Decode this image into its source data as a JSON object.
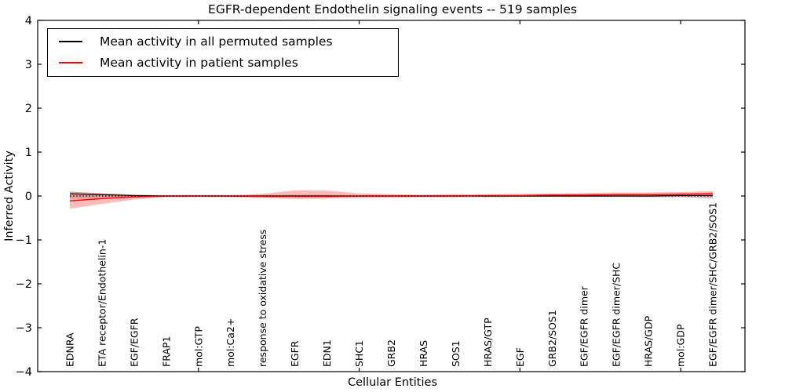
{
  "chart_data": {
    "type": "line",
    "title": "EGFR-dependent Endothelin signaling events -- 519 samples",
    "xlabel": "Cellular Entities",
    "ylabel": "Inferred Activity",
    "xlim": [
      0,
      22
    ],
    "ylim": [
      -4,
      4
    ],
    "yticks": [
      4,
      3,
      2,
      1,
      0,
      -1,
      -2,
      -3,
      -4
    ],
    "ytick_labels": [
      "4",
      "3",
      "2",
      "1",
      "0",
      "−1",
      "−2",
      "−3",
      "−4"
    ],
    "xticks_at": [
      5,
      10,
      15,
      20
    ],
    "grid": false,
    "legend_position": "upper left",
    "baseline": {
      "y": 0,
      "style": "dotted",
      "color": "#000000"
    },
    "frame_color": "#000000",
    "background_color": "#ffffff",
    "categories": [
      "EDNRA",
      "ETA receptor/Endothelin-1",
      "EGF/EGFR",
      "FRAP1",
      "mol:GTP",
      "mol:Ca2+",
      "response to oxidative stress",
      "EGFR",
      "EDN1",
      "SHC1",
      "GRB2",
      "HRAS",
      "SOS1",
      "HRAS/GTP",
      "EGF",
      "GRB2/SOS1",
      "EGF/EGFR dimer",
      "EGF/EGFR dimer/SHC",
      "HRAS/GDP",
      "mol:GDP",
      "EGF/EGFR dimer/SHC/GRB2/SOS1"
    ],
    "series": [
      {
        "name": "Mean activity in all permuted samples",
        "color": "#000000",
        "band_color": "rgba(0,0,0,0.16)",
        "values": [
          0.05,
          0.03,
          0.01,
          0.0,
          0.0,
          0.0,
          0.0,
          0.0,
          0.0,
          0.0,
          0.0,
          0.0,
          0.0,
          0.0,
          0.0,
          0.0,
          0.0,
          0.0,
          0.0,
          0.01,
          0.01
        ],
        "band_upper": [
          0.1,
          0.06,
          0.03,
          0.02,
          0.02,
          0.02,
          0.02,
          0.03,
          0.03,
          0.02,
          0.02,
          0.02,
          0.02,
          0.02,
          0.02,
          0.03,
          0.03,
          0.04,
          0.04,
          0.05,
          0.08
        ],
        "band_lower": [
          -0.07,
          -0.04,
          -0.02,
          -0.02,
          -0.02,
          -0.02,
          -0.02,
          -0.03,
          -0.03,
          -0.02,
          -0.02,
          -0.02,
          -0.02,
          -0.02,
          -0.02,
          -0.02,
          -0.02,
          -0.02,
          -0.03,
          -0.03,
          -0.06
        ]
      },
      {
        "name": "Mean activity in patient samples",
        "color": "#ff0000",
        "band_color": "rgba(255,0,0,0.27)",
        "values": [
          -0.11,
          -0.06,
          -0.02,
          0.0,
          0.0,
          0.0,
          -0.01,
          -0.01,
          -0.01,
          0.0,
          0.0,
          0.0,
          0.0,
          0.01,
          0.01,
          0.02,
          0.02,
          0.03,
          0.03,
          0.04,
          0.05
        ],
        "band_upper": [
          0.1,
          0.06,
          0.03,
          0.02,
          0.02,
          0.02,
          0.05,
          0.13,
          0.12,
          0.06,
          0.04,
          0.03,
          0.04,
          0.04,
          0.05,
          0.06,
          0.07,
          0.08,
          0.08,
          0.09,
          0.11
        ],
        "band_lower": [
          -0.29,
          -0.18,
          -0.08,
          -0.03,
          -0.02,
          -0.03,
          -0.05,
          -0.07,
          -0.06,
          -0.05,
          -0.04,
          -0.03,
          -0.03,
          -0.03,
          -0.02,
          -0.02,
          -0.02,
          -0.02,
          -0.02,
          -0.02,
          -0.03
        ]
      }
    ]
  }
}
